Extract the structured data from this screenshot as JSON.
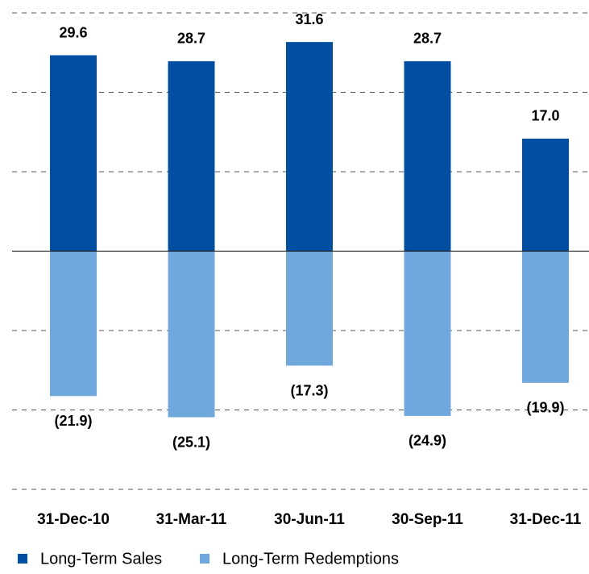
{
  "chart_data": {
    "type": "bar",
    "categories": [
      "31-Dec-10",
      "31-Mar-11",
      "30-Jun-11",
      "30-Sep-11",
      "31-Dec-11"
    ],
    "series": [
      {
        "name": "Long-Term Sales",
        "color": "#004fa3",
        "values": [
          29.6,
          28.7,
          31.6,
          28.7,
          17.0
        ],
        "value_labels": [
          "29.6",
          "28.7",
          "31.6",
          "28.7",
          "17.0"
        ]
      },
      {
        "name": "Long-Term Redemptions",
        "color": "#6fa8dc",
        "values": [
          -21.9,
          -25.1,
          -17.3,
          -24.9,
          -19.9
        ],
        "value_labels": [
          "(21.9)",
          "(25.1)",
          "(17.3)",
          "(24.9)",
          "(19.9)"
        ]
      }
    ],
    "ylim": [
      -36,
      36
    ],
    "yticks": [
      -36,
      -24,
      -12,
      0,
      12,
      24,
      36
    ],
    "grid": true,
    "legend": "bottom"
  }
}
